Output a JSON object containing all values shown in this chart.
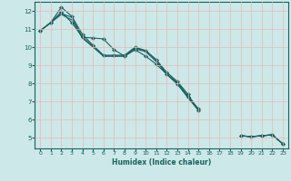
{
  "xlabel": "Humidex (Indice chaleur)",
  "bg_color": "#cce8e8",
  "line_color": "#1a6060",
  "grid_color": "#e8b8b8",
  "xlim": [
    -0.5,
    23.5
  ],
  "ylim": [
    4.4,
    12.5
  ],
  "yticks": [
    5,
    6,
    7,
    8,
    9,
    10,
    11,
    12
  ],
  "xticks": [
    0,
    1,
    2,
    3,
    4,
    5,
    6,
    7,
    8,
    9,
    10,
    11,
    12,
    13,
    14,
    15,
    16,
    17,
    18,
    19,
    20,
    21,
    22,
    23
  ],
  "series": [
    {
      "x": [
        0,
        1,
        2,
        3,
        4,
        5,
        6,
        7,
        8,
        9,
        10,
        11,
        12,
        13,
        14,
        15,
        16,
        17,
        18,
        19,
        20,
        21,
        22,
        23
      ],
      "y": [
        10.9,
        11.35,
        12.2,
        11.7,
        10.7,
        10.1,
        9.55,
        9.55,
        9.55,
        10.0,
        9.8,
        9.3,
        8.6,
        8.1,
        7.4,
        6.5,
        null,
        null,
        null,
        5.1,
        5.05,
        5.1,
        5.15,
        4.65
      ],
      "has_markers": true
    },
    {
      "x": [
        0,
        1,
        2,
        3,
        4,
        5,
        6,
        7,
        8,
        9,
        10,
        11,
        12,
        13,
        14,
        15,
        16,
        17,
        18,
        19,
        20,
        21,
        22,
        23
      ],
      "y": [
        10.9,
        11.35,
        11.95,
        11.35,
        10.55,
        10.5,
        10.45,
        9.85,
        9.5,
        9.85,
        9.5,
        9.05,
        8.5,
        7.95,
        7.25,
        6.6,
        null,
        null,
        null,
        5.1,
        5.05,
        5.1,
        5.15,
        4.65
      ],
      "has_markers": true
    },
    {
      "x": [
        0,
        1,
        2,
        3,
        4,
        5,
        6,
        7,
        8,
        9,
        10,
        11,
        12,
        13,
        14,
        15,
        16,
        17,
        18,
        19,
        20,
        21,
        22,
        23
      ],
      "y": [
        10.9,
        11.35,
        11.85,
        11.65,
        10.55,
        10.05,
        9.5,
        9.5,
        9.5,
        9.95,
        9.8,
        9.3,
        8.5,
        8.05,
        7.3,
        6.5,
        null,
        null,
        null,
        5.1,
        5.05,
        5.1,
        5.15,
        4.65
      ],
      "has_markers": false
    },
    {
      "x": [
        0,
        1,
        2,
        3,
        4,
        5,
        6,
        7,
        8,
        9,
        10,
        11,
        12,
        13,
        14,
        15,
        16,
        17,
        18,
        19,
        20,
        21,
        22,
        23
      ],
      "y": [
        10.9,
        11.35,
        11.8,
        11.5,
        10.5,
        10.0,
        9.5,
        9.5,
        9.5,
        9.9,
        9.75,
        9.2,
        8.5,
        7.98,
        7.2,
        6.5,
        null,
        null,
        null,
        5.1,
        5.05,
        5.1,
        5.15,
        4.65
      ],
      "has_markers": false
    }
  ]
}
